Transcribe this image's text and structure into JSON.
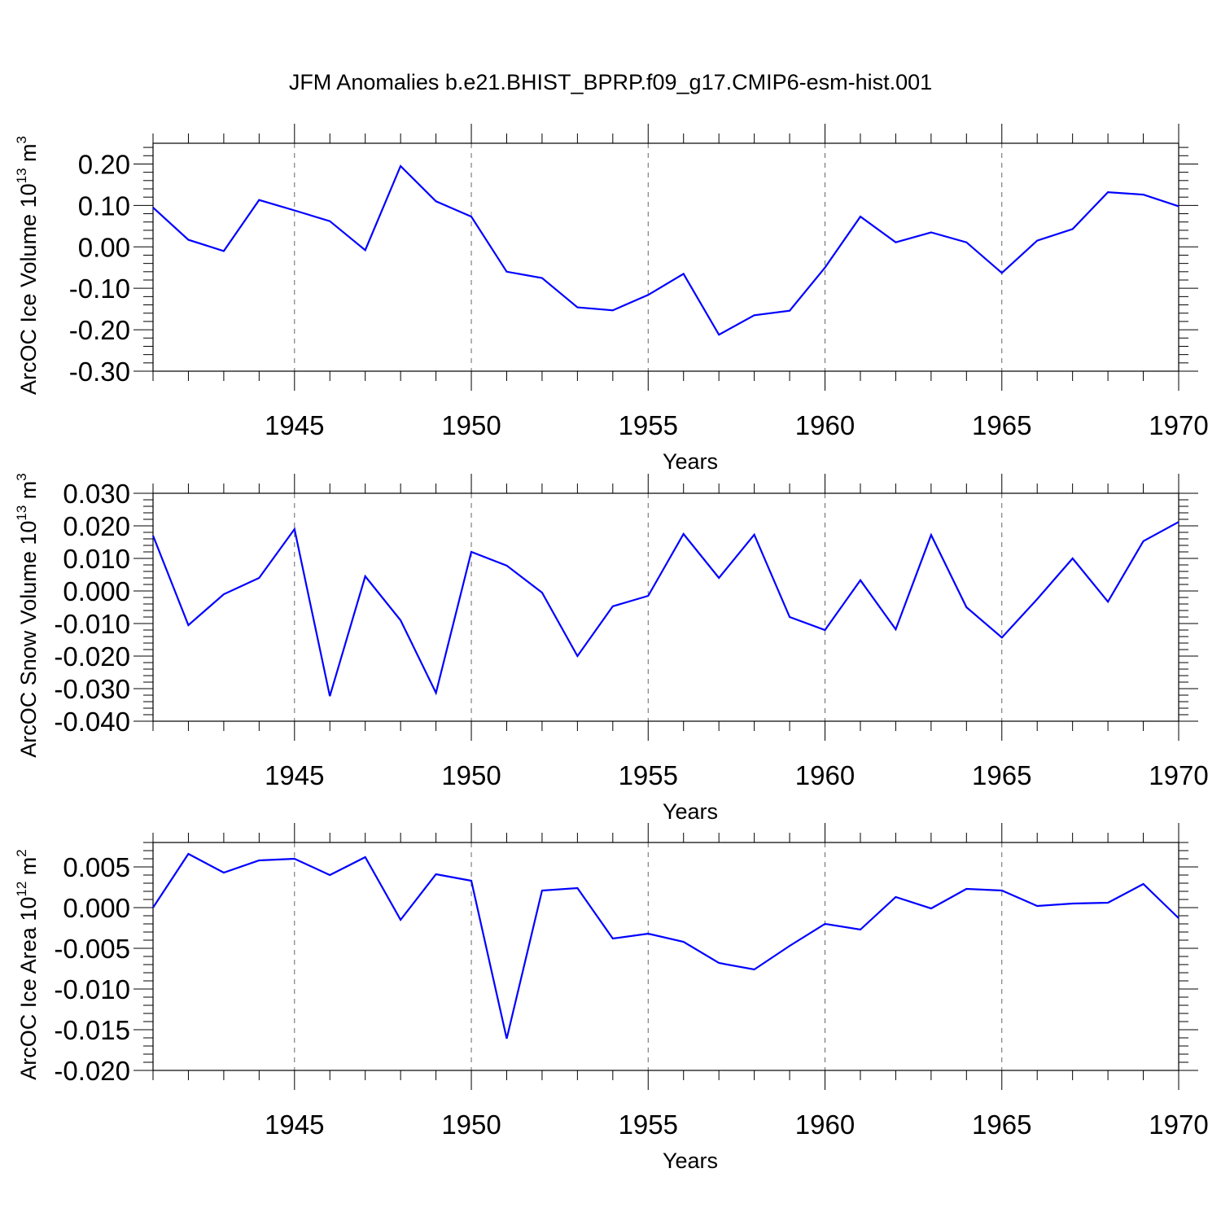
{
  "title": "JFM Anomalies b.e21.BHIST_BPRP.f09_g17.CMIP6-esm-hist.001",
  "chart_data": [
    {
      "type": "line",
      "ylabel_main": "ArcOC Ice Volume 10",
      "ylabel_exp": "13",
      "ylabel_unit": " m",
      "ylabel_unit_exp": "3",
      "xlabel": "Years",
      "xlim": [
        1941,
        1970
      ],
      "ylim": [
        -0.3,
        0.25
      ],
      "yticks": [
        -0.3,
        -0.2,
        -0.1,
        0.0,
        0.1,
        0.2
      ],
      "ytick_labels": [
        "-0.30",
        "-0.20",
        "-0.10",
        "0.00",
        "0.10",
        "0.20"
      ],
      "xticks": [
        1945,
        1950,
        1955,
        1960,
        1965,
        1970
      ],
      "xtick_labels": [
        "1945",
        "1950",
        "1955",
        "1960",
        "1965",
        "1970"
      ],
      "line_color": "#0000ff",
      "x": [
        1941,
        1942,
        1943,
        1944,
        1945,
        1946,
        1947,
        1948,
        1949,
        1950,
        1951,
        1952,
        1953,
        1954,
        1955,
        1956,
        1957,
        1958,
        1959,
        1960,
        1961,
        1962,
        1963,
        1964,
        1965,
        1966,
        1967,
        1968,
        1969,
        1970
      ],
      "values": [
        0.095,
        0.017,
        -0.01,
        0.113,
        0.088,
        0.062,
        -0.008,
        0.195,
        0.11,
        0.073,
        -0.06,
        -0.075,
        -0.146,
        -0.153,
        -0.116,
        -0.065,
        -0.212,
        -0.165,
        -0.154,
        -0.05,
        0.073,
        0.011,
        0.035,
        0.011,
        -0.063,
        0.015,
        0.043,
        0.132,
        0.126,
        0.098
      ]
    },
    {
      "type": "line",
      "ylabel_main": "ArcOC Snow Volume 10",
      "ylabel_exp": "13",
      "ylabel_unit": " m",
      "ylabel_unit_exp": "3",
      "xlabel": "Years",
      "xlim": [
        1941,
        1970
      ],
      "ylim": [
        -0.04,
        0.03
      ],
      "yticks": [
        -0.04,
        -0.03,
        -0.02,
        -0.01,
        0.0,
        0.01,
        0.02,
        0.03
      ],
      "ytick_labels": [
        "-0.040",
        "-0.030",
        "-0.020",
        "-0.010",
        "0.000",
        "0.010",
        "0.020",
        "0.030"
      ],
      "xticks": [
        1945,
        1950,
        1955,
        1960,
        1965,
        1970
      ],
      "xtick_labels": [
        "1945",
        "1950",
        "1955",
        "1960",
        "1965",
        "1970"
      ],
      "line_color": "#0000ff",
      "x": [
        1941,
        1942,
        1943,
        1944,
        1945,
        1946,
        1947,
        1948,
        1949,
        1950,
        1951,
        1952,
        1953,
        1954,
        1955,
        1956,
        1957,
        1958,
        1959,
        1960,
        1961,
        1962,
        1963,
        1964,
        1965,
        1966,
        1967,
        1968,
        1969,
        1970
      ],
      "values": [
        0.017,
        -0.0105,
        -0.001,
        0.004,
        0.019,
        -0.0323,
        0.0045,
        -0.009,
        -0.0313,
        0.012,
        0.0078,
        -0.0005,
        -0.02,
        -0.0047,
        -0.0015,
        0.0175,
        0.004,
        0.0173,
        -0.008,
        -0.012,
        0.0033,
        -0.0118,
        0.0172,
        -0.005,
        -0.0143,
        -0.0025,
        0.01,
        -0.0033,
        0.0153,
        0.0212
      ]
    },
    {
      "type": "line",
      "ylabel_main": "ArcOC Ice Area 10",
      "ylabel_exp": "12",
      "ylabel_unit": " m",
      "ylabel_unit_exp": "2",
      "xlabel": "Years",
      "xlim": [
        1941,
        1970
      ],
      "ylim": [
        -0.02,
        0.008
      ],
      "yticks": [
        -0.02,
        -0.015,
        -0.01,
        -0.005,
        0.0,
        0.005
      ],
      "ytick_labels": [
        "-0.020",
        "-0.015",
        "-0.010",
        "-0.005",
        "0.000",
        "0.005"
      ],
      "xticks": [
        1945,
        1950,
        1955,
        1960,
        1965,
        1970
      ],
      "xtick_labels": [
        "1945",
        "1950",
        "1955",
        "1960",
        "1965",
        "1970"
      ],
      "line_color": "#0000ff",
      "x": [
        1941,
        1942,
        1943,
        1944,
        1945,
        1946,
        1947,
        1948,
        1949,
        1950,
        1951,
        1952,
        1953,
        1954,
        1955,
        1956,
        1957,
        1958,
        1959,
        1960,
        1961,
        1962,
        1963,
        1964,
        1965,
        1966,
        1967,
        1968,
        1969,
        1970
      ],
      "values": [
        0.0,
        0.0066,
        0.0043,
        0.0058,
        0.006,
        0.004,
        0.0062,
        -0.0015,
        0.0041,
        0.0033,
        -0.0161,
        0.0021,
        0.0024,
        -0.0038,
        -0.0032,
        -0.0042,
        -0.0068,
        -0.0076,
        -0.0047,
        -0.002,
        -0.0027,
        0.0013,
        -0.0001,
        0.0023,
        0.0021,
        0.0002,
        0.0005,
        0.0006,
        0.0029,
        -0.0013
      ]
    }
  ]
}
